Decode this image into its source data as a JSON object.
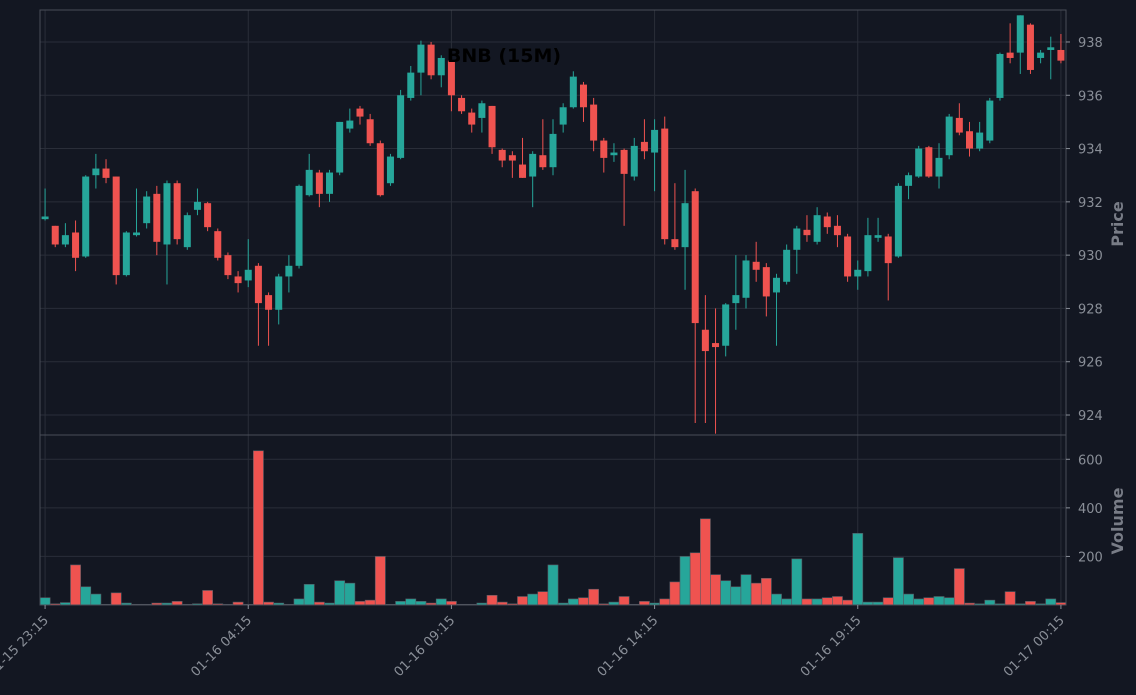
{
  "chart_data": {
    "type": "candlestick",
    "title": "BNB (15M)",
    "ylabel": "Price",
    "volume_ylabel": "Volume",
    "up_color": "#26a69a",
    "down_color": "#ef5350",
    "grid": true,
    "x": [
      "01-15 23:15",
      "01-15 23:30",
      "01-15 23:45",
      "01-16 00:00",
      "01-16 00:15",
      "01-16 00:30",
      "01-16 00:45",
      "01-16 01:00",
      "01-16 01:15",
      "01-16 01:30",
      "01-16 01:45",
      "01-16 02:00",
      "01-16 02:15",
      "01-16 02:30",
      "01-16 02:45",
      "01-16 03:00",
      "01-16 03:15",
      "01-16 03:30",
      "01-16 03:45",
      "01-16 04:00",
      "01-16 04:15",
      "01-16 04:30",
      "01-16 04:45",
      "01-16 05:00",
      "01-16 05:15",
      "01-16 05:30",
      "01-16 05:45",
      "01-16 06:00",
      "01-16 06:15",
      "01-16 06:30",
      "01-16 06:45",
      "01-16 07:00",
      "01-16 07:15",
      "01-16 07:30",
      "01-16 07:45",
      "01-16 08:00",
      "01-16 08:15",
      "01-16 08:30",
      "01-16 08:45",
      "01-16 09:00",
      "01-16 09:15",
      "01-16 09:30",
      "01-16 09:45",
      "01-16 10:00",
      "01-16 10:15",
      "01-16 10:30",
      "01-16 10:45",
      "01-16 11:00",
      "01-16 11:15",
      "01-16 11:30",
      "01-16 11:45",
      "01-16 12:00",
      "01-16 12:15",
      "01-16 12:30",
      "01-16 12:45",
      "01-16 13:00",
      "01-16 13:15",
      "01-16 13:30",
      "01-16 13:45",
      "01-16 14:00",
      "01-16 14:15",
      "01-16 14:30",
      "01-16 14:45",
      "01-16 15:00",
      "01-16 15:15",
      "01-16 15:30",
      "01-16 15:45",
      "01-16 16:00",
      "01-16 16:15",
      "01-16 16:30",
      "01-16 16:45",
      "01-16 17:00",
      "01-16 17:15",
      "01-16 17:30",
      "01-16 17:45",
      "01-16 18:00",
      "01-16 18:15",
      "01-16 18:30",
      "01-16 18:45",
      "01-16 19:00",
      "01-16 19:15",
      "01-16 19:30",
      "01-16 19:45",
      "01-16 20:00",
      "01-16 20:15",
      "01-16 20:30",
      "01-16 20:45",
      "01-16 21:00",
      "01-16 21:15",
      "01-16 21:30",
      "01-16 21:45",
      "01-16 22:00",
      "01-16 22:15",
      "01-16 22:30",
      "01-16 22:45",
      "01-16 23:00",
      "01-16 23:15",
      "01-16 23:30",
      "01-16 23:45",
      "01-17 00:00",
      "01-17 00:15"
    ],
    "open": [
      931.35,
      931.1,
      930.4,
      930.85,
      929.95,
      933.0,
      933.25,
      932.95,
      929.25,
      930.75,
      931.2,
      932.3,
      930.4,
      932.7,
      930.3,
      931.7,
      931.95,
      930.9,
      930.0,
      929.2,
      929.05,
      929.6,
      928.5,
      927.95,
      929.2,
      929.6,
      932.25,
      933.1,
      932.3,
      933.1,
      934.75,
      935.5,
      935.1,
      934.2,
      932.7,
      933.65,
      935.9,
      936.85,
      937.9,
      936.75,
      937.3,
      935.9,
      935.35,
      935.15,
      935.6,
      933.95,
      933.75,
      933.4,
      932.95,
      933.75,
      933.3,
      934.9,
      935.55,
      936.4,
      935.65,
      934.3,
      933.75,
      933.95,
      932.95,
      934.25,
      933.85,
      934.75,
      930.6,
      930.3,
      932.4,
      927.2,
      926.7,
      926.6,
      928.2,
      928.4,
      929.75,
      929.55,
      928.6,
      929.0,
      930.2,
      930.95,
      930.5,
      931.45,
      931.1,
      930.7,
      929.2,
      929.4,
      930.65,
      930.7,
      929.95,
      932.6,
      932.95,
      934.05,
      932.95,
      933.75,
      935.15,
      934.65,
      934.0,
      934.3,
      935.9,
      937.6,
      937.6,
      938.65,
      937.4,
      937.7,
      937.7
    ],
    "high": [
      932.5,
      931.1,
      931.2,
      931.3,
      933.0,
      933.8,
      933.6,
      932.95,
      930.9,
      932.5,
      932.4,
      932.6,
      932.8,
      932.8,
      931.6,
      932.5,
      932.0,
      931.0,
      930.1,
      929.4,
      930.6,
      929.7,
      928.6,
      929.3,
      930.0,
      932.65,
      933.8,
      933.2,
      933.2,
      935.0,
      935.5,
      935.6,
      935.3,
      934.3,
      933.8,
      936.2,
      937.1,
      938.05,
      938.0,
      937.5,
      937.4,
      936.0,
      935.5,
      935.8,
      935.6,
      934.0,
      933.9,
      934.4,
      933.9,
      935.1,
      935.1,
      935.7,
      936.9,
      936.5,
      935.9,
      934.4,
      934.2,
      934.0,
      934.4,
      935.1,
      935.1,
      935.2,
      932.7,
      933.2,
      932.5,
      928.5,
      928.0,
      928.2,
      930.0,
      930.0,
      930.5,
      929.7,
      929.3,
      930.4,
      931.1,
      931.5,
      931.8,
      931.6,
      931.5,
      930.8,
      929.8,
      931.4,
      931.4,
      930.8,
      932.7,
      933.1,
      934.1,
      934.1,
      934.2,
      935.3,
      935.7,
      935.0,
      935.0,
      935.9,
      937.6,
      938.7,
      939.0,
      938.7,
      937.7,
      938.2,
      938.3
    ],
    "low": [
      931.3,
      930.3,
      930.3,
      929.4,
      929.9,
      932.5,
      932.7,
      928.9,
      929.2,
      930.7,
      931.0,
      930.0,
      928.9,
      930.4,
      930.2,
      931.5,
      930.9,
      929.8,
      929.1,
      928.6,
      928.8,
      926.6,
      926.6,
      927.4,
      928.6,
      929.5,
      932.2,
      931.8,
      932.0,
      933.0,
      934.6,
      934.9,
      934.1,
      932.2,
      932.6,
      933.6,
      935.8,
      936.0,
      936.6,
      936.3,
      935.4,
      935.3,
      934.6,
      934.6,
      933.8,
      933.3,
      932.9,
      932.9,
      931.8,
      933.2,
      933.0,
      934.6,
      935.5,
      935.0,
      933.9,
      933.1,
      933.5,
      931.1,
      932.8,
      933.6,
      932.4,
      930.4,
      930.2,
      928.7,
      923.7,
      923.7,
      923.3,
      926.2,
      927.2,
      928.0,
      929.0,
      927.7,
      926.6,
      928.9,
      929.3,
      930.5,
      930.4,
      930.8,
      930.3,
      929.0,
      928.7,
      929.2,
      930.5,
      928.3,
      929.9,
      932.1,
      932.9,
      932.9,
      932.5,
      933.6,
      934.5,
      933.7,
      933.9,
      934.2,
      935.8,
      937.2,
      936.8,
      936.8,
      937.2,
      936.6,
      937.2
    ],
    "close": [
      931.45,
      930.4,
      930.75,
      929.9,
      932.95,
      933.25,
      932.9,
      929.25,
      930.85,
      930.85,
      932.2,
      930.5,
      932.7,
      930.6,
      931.5,
      932.0,
      931.05,
      929.9,
      929.25,
      928.95,
      929.45,
      928.2,
      927.95,
      929.2,
      929.6,
      932.6,
      933.2,
      932.3,
      933.1,
      935.0,
      935.05,
      935.2,
      934.2,
      932.25,
      933.7,
      936.0,
      936.85,
      937.9,
      936.75,
      937.4,
      936.0,
      935.4,
      934.9,
      935.7,
      934.05,
      933.55,
      933.55,
      932.9,
      933.8,
      933.3,
      934.55,
      935.55,
      936.7,
      935.55,
      934.3,
      933.65,
      933.85,
      933.05,
      934.1,
      933.9,
      934.7,
      930.6,
      930.3,
      931.95,
      927.45,
      926.4,
      926.55,
      928.15,
      928.5,
      929.8,
      929.45,
      928.45,
      929.15,
      930.2,
      931.0,
      930.75,
      931.5,
      931.05,
      930.75,
      929.2,
      929.45,
      930.75,
      930.75,
      929.7,
      932.6,
      933.0,
      934.0,
      932.95,
      933.65,
      935.2,
      934.6,
      934.0,
      934.6,
      935.8,
      937.55,
      937.4,
      939.0,
      936.95,
      937.6,
      937.8,
      937.3
    ],
    "volume": [
      30,
      5,
      10,
      165,
      75,
      45,
      3,
      50,
      8,
      3,
      3,
      8,
      8,
      15,
      3,
      5,
      60,
      5,
      3,
      12,
      3,
      635,
      12,
      8,
      3,
      25,
      85,
      12,
      8,
      100,
      90,
      15,
      20,
      200,
      3,
      15,
      25,
      15,
      8,
      25,
      15,
      3,
      3,
      8,
      40,
      12,
      5,
      35,
      45,
      55,
      165,
      8,
      25,
      30,
      65,
      5,
      12,
      35,
      3,
      15,
      8,
      25,
      95,
      200,
      215,
      355,
      125,
      100,
      75,
      125,
      90,
      110,
      45,
      25,
      190,
      25,
      25,
      30,
      35,
      20,
      295,
      12,
      12,
      30,
      195,
      45,
      25,
      30,
      35,
      30,
      150,
      8,
      5,
      20,
      5,
      55,
      5,
      15,
      5,
      25,
      10
    ],
    "ylim": [
      923.25,
      939.2
    ],
    "yticks": [
      924,
      926,
      928,
      930,
      932,
      934,
      936,
      938
    ],
    "volume_ylim": [
      0,
      700
    ],
    "volume_yticks": [
      200,
      400,
      600
    ],
    "xticks": [
      "01-15 23:15",
      "01-16 04:15",
      "01-16 09:15",
      "01-16 14:15",
      "01-16 19:15",
      "01-17 00:15"
    ]
  }
}
